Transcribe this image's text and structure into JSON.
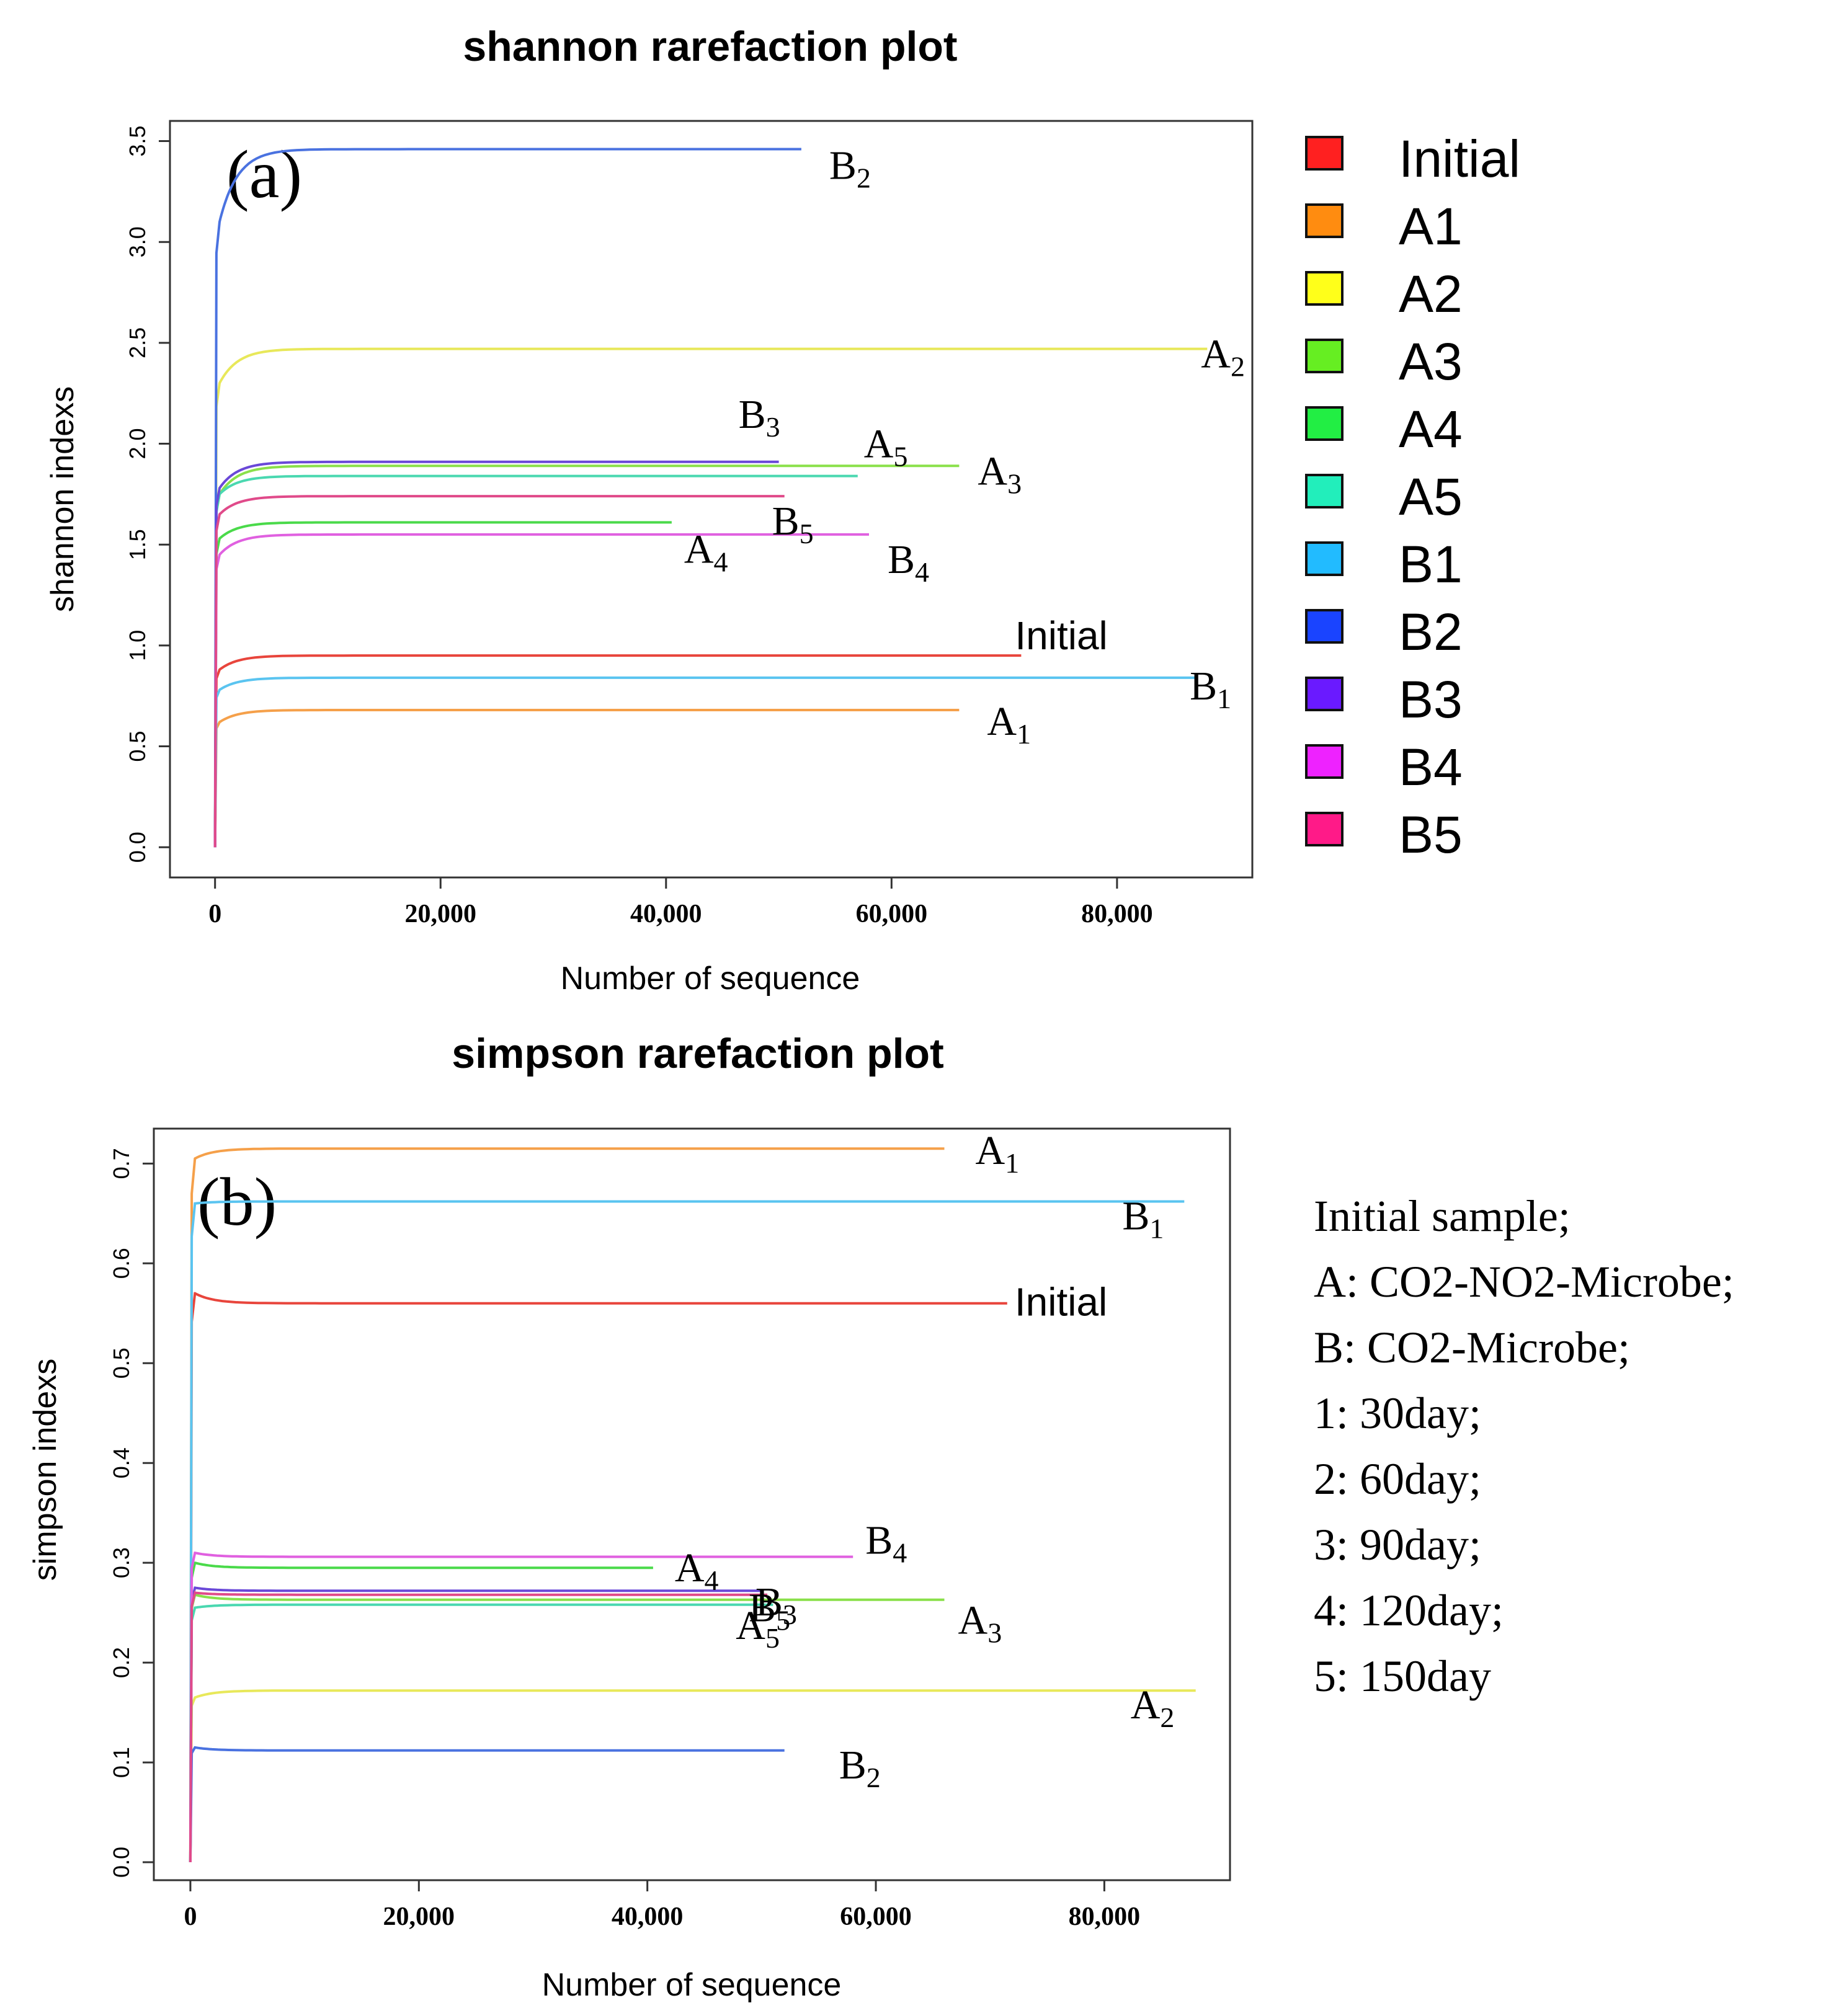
{
  "chart_data": [
    {
      "type": "line",
      "title": "shannon rarefaction plot",
      "panel_label": "(a)",
      "xlabel": "Number of sequence",
      "ylabel": "shannon indexs",
      "xlim": [
        -4000,
        92000
      ],
      "ylim": [
        -0.15,
        3.6
      ],
      "xticks": [
        0,
        20000,
        40000,
        60000,
        80000
      ],
      "xtick_labels": [
        "0",
        "20,000",
        "40,000",
        "60,000",
        "80,000"
      ],
      "yticks": [
        0.0,
        0.5,
        1.0,
        1.5,
        2.0,
        2.5,
        3.0,
        3.5
      ],
      "ytick_labels": [
        "0.0",
        "0.5",
        "1.0",
        "1.5",
        "2.0",
        "2.5",
        "3.0",
        "3.5"
      ],
      "series": [
        {
          "name": "Initial",
          "color": "#e8453c",
          "start": 0.88,
          "plateau": 0.95,
          "max_x": 71500,
          "label": "Initial"
        },
        {
          "name": "A1",
          "color": "#f5a04a",
          "start": 0.62,
          "plateau": 0.68,
          "max_x": 66000,
          "label": "A1"
        },
        {
          "name": "A2",
          "color": "#e8e85a",
          "start": 2.3,
          "plateau": 2.47,
          "max_x": 88000,
          "label": "A2"
        },
        {
          "name": "A3",
          "color": "#8ae04a",
          "start": 1.75,
          "plateau": 1.89,
          "max_x": 66000,
          "label": "A3"
        },
        {
          "name": "A4",
          "color": "#4ada4a",
          "start": 1.53,
          "plateau": 1.61,
          "max_x": 40500,
          "label": "A4"
        },
        {
          "name": "A5",
          "color": "#4ad8b0",
          "start": 1.75,
          "plateau": 1.84,
          "max_x": 57000,
          "label": "A5"
        },
        {
          "name": "B1",
          "color": "#5ac4f0",
          "start": 0.78,
          "plateau": 0.84,
          "max_x": 87000,
          "label": "B1"
        },
        {
          "name": "B2",
          "color": "#4a72e0",
          "start": 3.1,
          "plateau": 3.46,
          "max_x": 52000,
          "label": "B2"
        },
        {
          "name": "B3",
          "color": "#6a48d8",
          "start": 1.78,
          "plateau": 1.91,
          "max_x": 50000,
          "label": "B3"
        },
        {
          "name": "B4",
          "color": "#e060e0",
          "start": 1.45,
          "plateau": 1.55,
          "max_x": 58000,
          "label": "B4"
        },
        {
          "name": "B5",
          "color": "#e04a8a",
          "start": 1.65,
          "plateau": 1.74,
          "max_x": 50500,
          "label": "B5"
        }
      ],
      "legend": [
        {
          "label": "Initial",
          "color": "#ff2020"
        },
        {
          "label": "A1",
          "color": "#ff8c10"
        },
        {
          "label": "A2",
          "color": "#ffff1a"
        },
        {
          "label": "A3",
          "color": "#66ee22"
        },
        {
          "label": "A4",
          "color": "#22ee44"
        },
        {
          "label": "A5",
          "color": "#22eebb"
        },
        {
          "label": "B1",
          "color": "#22bbff"
        },
        {
          "label": "B2",
          "color": "#1a44ff"
        },
        {
          "label": "B3",
          "color": "#6a1aff"
        },
        {
          "label": "B4",
          "color": "#ee22ff"
        },
        {
          "label": "B5",
          "color": "#ff1a88"
        }
      ]
    },
    {
      "type": "line",
      "title": "simpson rarefaction plot",
      "panel_label": "(b)",
      "xlabel": "Number of sequence",
      "ylabel": "simpson indexs",
      "xlim": [
        -3200,
        91000
      ],
      "ylim": [
        -0.018,
        0.735
      ],
      "xticks": [
        0,
        20000,
        40000,
        60000,
        80000
      ],
      "xtick_labels": [
        "0",
        "20,000",
        "40,000",
        "60,000",
        "80,000"
      ],
      "yticks": [
        0.0,
        0.1,
        0.2,
        0.3,
        0.4,
        0.5,
        0.6,
        0.7
      ],
      "ytick_labels": [
        "0.0",
        "0.1",
        "0.2",
        "0.3",
        "0.4",
        "0.5",
        "0.6",
        "0.7"
      ],
      "series": [
        {
          "name": "Initial",
          "color": "#e8453c",
          "start": 0.57,
          "plateau": 0.56,
          "max_x": 71500,
          "label": "Initial"
        },
        {
          "name": "A1",
          "color": "#f5a04a",
          "start": 0.705,
          "plateau": 0.715,
          "max_x": 66000,
          "label": "A1"
        },
        {
          "name": "A2",
          "color": "#e8e85a",
          "start": 0.165,
          "plateau": 0.172,
          "max_x": 88000,
          "label": "A2"
        },
        {
          "name": "A3",
          "color": "#8ae04a",
          "start": 0.268,
          "plateau": 0.263,
          "max_x": 66000,
          "label": "A3"
        },
        {
          "name": "A4",
          "color": "#4ada4a",
          "start": 0.3,
          "plateau": 0.295,
          "max_x": 40500,
          "label": "A4"
        },
        {
          "name": "A5",
          "color": "#4ad8b0",
          "start": 0.255,
          "plateau": 0.258,
          "max_x": 51000,
          "label": "A5"
        },
        {
          "name": "B1",
          "color": "#5ac4f0",
          "start": 0.66,
          "plateau": 0.662,
          "max_x": 87000,
          "label": "B1"
        },
        {
          "name": "B2",
          "color": "#4a72e0",
          "start": 0.115,
          "plateau": 0.112,
          "max_x": 52000,
          "label": "B2"
        },
        {
          "name": "B3",
          "color": "#6a48d8",
          "start": 0.275,
          "plateau": 0.272,
          "max_x": 50000,
          "label": "B3"
        },
        {
          "name": "B4",
          "color": "#e060e0",
          "start": 0.31,
          "plateau": 0.306,
          "max_x": 58000,
          "label": "B4"
        },
        {
          "name": "B5",
          "color": "#e04a8a",
          "start": 0.27,
          "plateau": 0.268,
          "max_x": 50500,
          "label": "B5"
        }
      ],
      "notes": [
        "Initial sample;",
        "A: CO2-NO2-Microbe;",
        "B: CO2-Microbe;",
        "1: 30day;",
        "2: 60day;",
        "3: 90day;",
        "4: 120day;",
        "5: 150day"
      ]
    }
  ]
}
